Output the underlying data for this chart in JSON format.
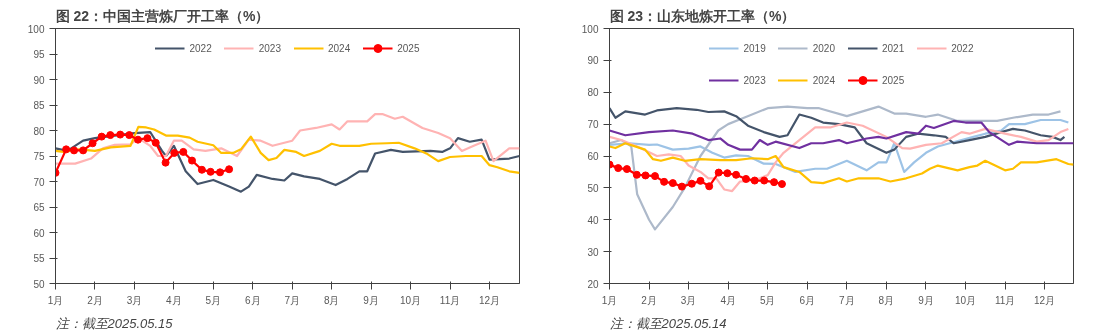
{
  "chart_data": [
    {
      "type": "line",
      "title": "图 22：中国主营炼厂开工率（%）",
      "annotations": [
        "注：截至2025.05.15"
      ],
      "xlim": [
        1,
        12.76
      ],
      "xticks": [
        {
          "value": 1,
          "label": "1月"
        },
        {
          "value": 2,
          "label": "2月"
        },
        {
          "value": 3,
          "label": "3月"
        },
        {
          "value": 4,
          "label": "4月"
        },
        {
          "value": 5,
          "label": "5月"
        },
        {
          "value": 6,
          "label": "6月"
        },
        {
          "value": 7,
          "label": "7月"
        },
        {
          "value": 8,
          "label": "8月"
        },
        {
          "value": 9,
          "label": "9月"
        },
        {
          "value": 10,
          "label": "10月"
        },
        {
          "value": 11,
          "label": "11月"
        },
        {
          "value": 12,
          "label": "12月"
        }
      ],
      "ylim": [
        50,
        100
      ],
      "yticks": [
        50,
        55,
        60,
        65,
        70,
        75,
        80,
        85,
        90,
        95,
        100
      ],
      "grid": false,
      "legend": "top",
      "series": [
        {
          "name": "2022",
          "color": "#44546a",
          "marker": "none",
          "x": [
            1,
            1.3,
            1.7,
            2.0,
            2.5,
            3.0,
            3.4,
            3.7,
            3.8,
            4.0,
            4.3,
            4.6,
            5.0,
            5.4,
            5.7,
            5.9,
            6.1,
            6.5,
            6.8,
            7.0,
            7.3,
            7.7,
            8.1,
            8.4,
            8.7,
            8.9,
            9.1,
            9.5,
            9.8,
            10.5,
            10.8,
            11.0,
            11.2,
            11.5,
            11.8,
            12.0,
            12.5,
            12.76
          ],
          "values": [
            76.5,
            76,
            78,
            78.5,
            79,
            79.5,
            79.7,
            76,
            75,
            77,
            72,
            69.5,
            70.3,
            69,
            68,
            69,
            71.3,
            70.5,
            70.2,
            71.6,
            71,
            70.5,
            69.3,
            70.5,
            72,
            72,
            75.5,
            76.2,
            75.8,
            76,
            75.8,
            76.5,
            78.5,
            77.8,
            78.2,
            74.3,
            74.5,
            75
          ]
        },
        {
          "name": "2023",
          "color": "#ffb3b3",
          "marker": "none",
          "x": [
            1.0,
            1.5,
            1.9,
            2.2,
            2.5,
            2.9,
            3.1,
            3.4,
            3.6,
            3.8,
            4.0,
            4.2,
            4.5,
            4.8,
            5.2,
            5.6,
            5.9,
            6.2,
            6.5,
            6.9,
            7.0,
            7.2,
            7.6,
            8.0,
            8.2,
            8.4,
            8.9,
            9.1,
            9.3,
            9.6,
            9.8,
            10.3,
            10.7,
            11.0,
            11.3,
            11.6,
            11.9,
            12.1,
            12.5,
            12.76
          ],
          "values": [
            73.5,
            73.5,
            74.5,
            76.5,
            77.2,
            77.3,
            78.5,
            77,
            75,
            75,
            78,
            78,
            76.3,
            76,
            76.5,
            75,
            78.2,
            78,
            77,
            77.8,
            78,
            80,
            80.5,
            81.2,
            80.2,
            81.8,
            81.8,
            83.2,
            83.2,
            82.3,
            82.7,
            80.5,
            79.5,
            78.5,
            76,
            77,
            78,
            74,
            76.5,
            76.5
          ]
        },
        {
          "name": "2024",
          "color": "#ffc000",
          "marker": "none",
          "x": [
            1.0,
            1.2,
            1.6,
            2.0,
            2.4,
            2.9,
            3.1,
            3.3,
            3.5,
            3.8,
            4.1,
            4.4,
            4.6,
            5.0,
            5.2,
            5.5,
            5.7,
            5.95,
            6.2,
            6.4,
            6.6,
            6.8,
            7.1,
            7.3,
            7.7,
            8.0,
            8.2,
            8.7,
            9.0,
            9.4,
            9.7,
            10.1,
            10.4,
            10.7,
            11.0,
            11.4,
            11.8,
            12.0,
            12.2,
            12.5,
            12.76
          ],
          "values": [
            76,
            75.8,
            76.3,
            76,
            76.7,
            77,
            80.7,
            80.6,
            80.2,
            79,
            79,
            78.6,
            77.8,
            77.1,
            75.6,
            75.6,
            76.3,
            78.8,
            75.6,
            74.2,
            74.6,
            76.2,
            75.8,
            75,
            76,
            77.4,
            77,
            77,
            77.4,
            77.5,
            77.6,
            76.5,
            75.5,
            74,
            74.8,
            75,
            75,
            73.2,
            72.8,
            72,
            71.7
          ]
        },
        {
          "name": "2025",
          "color": "#ff0000",
          "marker": "circle",
          "x": [
            1.0,
            1.27,
            1.47,
            1.7,
            1.94,
            2.17,
            2.39,
            2.64,
            2.87,
            3.09,
            3.33,
            3.54,
            3.79,
            4.01,
            4.24,
            4.46,
            4.71,
            4.93,
            5.17,
            5.4
          ],
          "values": [
            71.7,
            76.3,
            76.1,
            76.1,
            77.5,
            78.8,
            79.1,
            79.2,
            79.1,
            78.2,
            78.5,
            77.6,
            73.7,
            75.6,
            75.8,
            74.1,
            72.3,
            71.9,
            71.8,
            72.4
          ]
        }
      ]
    },
    {
      "type": "line",
      "title": "图 23：山东地炼开工率（%）",
      "annotations": [
        "注：截至2025.05.14"
      ],
      "xlim": [
        1,
        12.73
      ],
      "xticks": [
        {
          "value": 1,
          "label": "1月"
        },
        {
          "value": 2,
          "label": "2月"
        },
        {
          "value": 3,
          "label": "3月"
        },
        {
          "value": 4,
          "label": "4月"
        },
        {
          "value": 5,
          "label": "5月"
        },
        {
          "value": 6,
          "label": "6月"
        },
        {
          "value": 7,
          "label": "7月"
        },
        {
          "value": 8,
          "label": "8月"
        },
        {
          "value": 9,
          "label": "9月"
        },
        {
          "value": 10,
          "label": "10月"
        },
        {
          "value": 11,
          "label": "11月"
        },
        {
          "value": 12,
          "label": "12月"
        }
      ],
      "ylim": [
        20,
        100
      ],
      "yticks": [
        20,
        30,
        40,
        50,
        60,
        70,
        80,
        90,
        100
      ],
      "grid": false,
      "legend": "top",
      "series": [
        {
          "name": "2019",
          "color": "#9dc3e6",
          "marker": "none",
          "x": [
            1.0,
            1.5,
            2.0,
            2.2,
            2.6,
            3.0,
            3.3,
            3.6,
            3.9,
            4.2,
            4.5,
            4.9,
            5.2,
            5.7,
            6.2,
            6.5,
            7.0,
            7.5,
            7.8,
            8.0,
            8.2,
            8.45,
            8.7,
            9.0,
            9.3,
            9.6,
            10.2,
            10.5,
            10.9,
            11.1,
            11.5,
            11.9,
            12.4,
            12.6
          ],
          "values": [
            63.5,
            64,
            63.5,
            63.6,
            62,
            62.3,
            63,
            61,
            59.5,
            60.2,
            60,
            57.6,
            57.5,
            55,
            56,
            56,
            58.5,
            55.5,
            58,
            58,
            64,
            55,
            58,
            61,
            63,
            64,
            66,
            67,
            68,
            70,
            70,
            71.3,
            71.3,
            70.5
          ]
        },
        {
          "name": "2020",
          "color": "#adb9ca",
          "marker": "none",
          "x": [
            1.0,
            1.3,
            1.55,
            1.7,
            2.0,
            2.15,
            2.6,
            2.9,
            3.3,
            3.75,
            4.0,
            4.4,
            5.0,
            5.5,
            6.0,
            6.3,
            7.0,
            7.8,
            8.2,
            8.5,
            9.0,
            9.3,
            9.8,
            10.5,
            10.8,
            11.2,
            11.7,
            12.1,
            12.4
          ],
          "values": [
            64,
            65,
            63,
            48,
            40,
            37,
            44,
            50,
            60,
            68,
            70,
            72,
            75,
            75.5,
            75,
            75,
            72.5,
            75.5,
            73.3,
            73.3,
            72.3,
            73,
            71,
            71,
            71,
            72,
            73,
            73,
            74
          ]
        },
        {
          "name": "2021",
          "color": "#44546a",
          "marker": "none",
          "x": [
            1.0,
            1.15,
            1.4,
            1.9,
            2.2,
            2.7,
            3.2,
            3.5,
            3.9,
            4.2,
            4.5,
            4.9,
            5.3,
            5.5,
            5.8,
            6.1,
            6.4,
            6.8,
            7.2,
            7.5,
            8.0,
            8.2,
            8.5,
            8.8,
            9.2,
            9.5,
            9.7,
            10.1,
            10.5,
            10.9,
            11.2,
            11.5,
            11.9,
            12.2,
            12.4,
            12.5
          ],
          "values": [
            75,
            72,
            74,
            73,
            74.3,
            75,
            74.5,
            73.8,
            74,
            72.5,
            69.5,
            67.5,
            66,
            66.5,
            73,
            72,
            70.5,
            70,
            69,
            64,
            61,
            62,
            66,
            67,
            66.5,
            66,
            64,
            65,
            66,
            67.5,
            68.5,
            68,
            66.5,
            66,
            65,
            66
          ]
        },
        {
          "name": "2022",
          "color": "#ffb3b3",
          "marker": "none",
          "x": [
            1.0,
            1.3,
            1.7,
            2.2,
            2.5,
            2.8,
            3.0,
            3.3,
            3.5,
            3.7,
            3.9,
            4.1,
            4.3,
            4.5,
            4.8,
            5.0,
            5.2,
            5.4,
            5.8,
            6.2,
            6.6,
            7.0,
            7.4,
            8.0,
            8.4,
            8.6,
            9.0,
            9.4,
            9.9,
            10.1,
            10.5,
            11.0,
            11.4,
            11.8,
            12.1,
            12.4,
            12.6
          ],
          "values": [
            66,
            65,
            63,
            60,
            60.5,
            60,
            57,
            55,
            53,
            53,
            49.5,
            49,
            52,
            52,
            53,
            54,
            58,
            61,
            65,
            69,
            69,
            70.5,
            69.5,
            66,
            62.5,
            62.3,
            63.5,
            64,
            67.5,
            67,
            68.5,
            67,
            66,
            64.5,
            65,
            67.5,
            68.5
          ]
        },
        {
          "name": "2023",
          "color": "#7030a0",
          "marker": "none",
          "x": [
            1.0,
            1.4,
            2.0,
            2.6,
            3.1,
            3.5,
            3.8,
            4.0,
            4.3,
            4.6,
            4.8,
            5.0,
            5.2,
            5.8,
            6.1,
            6.4,
            6.8,
            7.0,
            7.5,
            7.8,
            8.0,
            8.5,
            8.8,
            9.0,
            9.2,
            9.7,
            10.0,
            10.4,
            10.6,
            11.1,
            11.3,
            11.8,
            12.2,
            12.73
          ],
          "values": [
            68,
            66.5,
            67.5,
            68,
            67,
            65,
            65.5,
            63.5,
            62,
            62,
            65,
            63.5,
            64.5,
            62.5,
            64,
            64,
            65,
            64,
            65.5,
            66,
            65.5,
            67.5,
            67,
            69.5,
            68.8,
            71,
            70.5,
            70.5,
            67.5,
            63.5,
            64.5,
            64,
            64,
            64
          ]
        },
        {
          "name": "2024",
          "color": "#ffc000",
          "marker": "none",
          "x": [
            1.0,
            1.15,
            1.4,
            1.9,
            2.1,
            2.3,
            2.6,
            2.9,
            3.3,
            3.8,
            4.2,
            4.6,
            5.0,
            5.2,
            5.4,
            5.8,
            6.1,
            6.4,
            6.8,
            7.0,
            7.3,
            7.8,
            8.1,
            8.5,
            8.9,
            9.1,
            9.3,
            9.8,
            10.1,
            10.3,
            10.5,
            11.0,
            11.2,
            11.4,
            11.8,
            12.3,
            12.6,
            12.73
          ],
          "values": [
            63,
            62.5,
            64,
            62,
            59,
            58.5,
            59.5,
            58.5,
            59,
            58.7,
            58.7,
            59.3,
            59,
            60,
            56.5,
            55,
            51.8,
            51.5,
            53,
            52,
            53,
            53,
            52,
            53,
            54.5,
            56,
            57,
            55.5,
            56.5,
            57,
            58.5,
            55.5,
            56,
            58,
            58,
            59,
            57.5,
            57.3
          ]
        },
        {
          "name": "2025",
          "color": "#ff0000",
          "marker": "circle",
          "x": [
            1.0,
            1.22,
            1.44,
            1.69,
            1.91,
            2.15,
            2.38,
            2.6,
            2.83,
            3.08,
            3.3,
            3.52,
            3.76,
            3.98,
            4.2,
            4.45,
            4.67,
            4.91,
            5.16,
            5.36
          ],
          "values": [
            57.3,
            56.2,
            55.9,
            54.1,
            53.9,
            53.7,
            51.9,
            51.5,
            50.4,
            51.3,
            52.2,
            50.5,
            54.8,
            54.6,
            54.1,
            52.8,
            52.3,
            52.3,
            51.8,
            51.2
          ]
        }
      ]
    }
  ]
}
